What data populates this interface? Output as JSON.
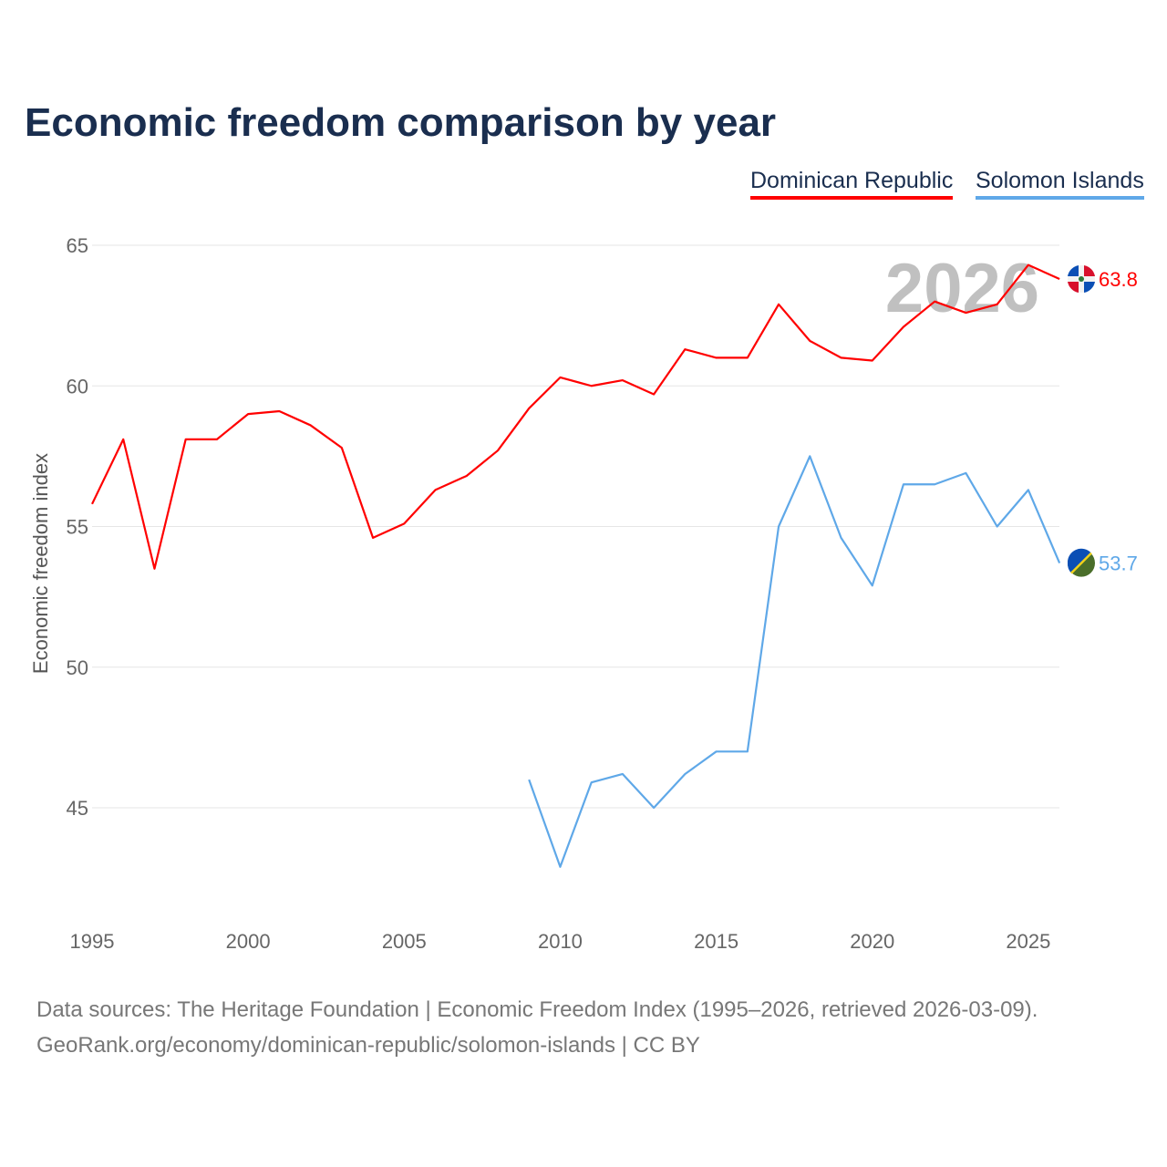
{
  "chart_data": {
    "type": "line",
    "title": "Economic freedom comparison by year",
    "xlabel": "",
    "ylabel": "Economic freedom index",
    "xlim": [
      1995,
      2026
    ],
    "ylim": [
      42,
      65
    ],
    "yticks": [
      45,
      50,
      55,
      60,
      65
    ],
    "xticks": [
      1995,
      2000,
      2005,
      2010,
      2015,
      2020,
      2025
    ],
    "grid": true,
    "legend_position": "top-right",
    "watermark_year": "2026",
    "series": [
      {
        "name": "Dominican Republic",
        "color": "#ff0000",
        "end_label": "63.8",
        "x": [
          1995,
          1996,
          1997,
          1998,
          1999,
          2000,
          2001,
          2002,
          2003,
          2004,
          2005,
          2006,
          2007,
          2008,
          2009,
          2010,
          2011,
          2012,
          2013,
          2014,
          2015,
          2016,
          2017,
          2018,
          2019,
          2020,
          2021,
          2022,
          2023,
          2024,
          2025,
          2026
        ],
        "values": [
          55.8,
          58.1,
          53.5,
          58.1,
          58.1,
          59.0,
          59.1,
          58.6,
          57.8,
          54.6,
          55.1,
          56.3,
          56.8,
          57.7,
          59.2,
          60.3,
          60.0,
          60.2,
          59.7,
          61.3,
          61.0,
          61.0,
          62.9,
          61.6,
          61.0,
          60.9,
          62.1,
          63.0,
          62.6,
          62.9,
          64.3,
          63.8
        ]
      },
      {
        "name": "Solomon Islands",
        "color": "#5fa8e8",
        "end_label": "53.7",
        "x": [
          2009,
          2010,
          2011,
          2012,
          2013,
          2014,
          2015,
          2016,
          2017,
          2018,
          2019,
          2020,
          2021,
          2022,
          2023,
          2024,
          2025,
          2026
        ],
        "values": [
          46.0,
          42.9,
          45.9,
          46.2,
          45.0,
          46.2,
          47.0,
          47.0,
          55.0,
          57.5,
          54.6,
          52.9,
          56.5,
          56.5,
          56.9,
          55.0,
          56.3,
          53.7
        ]
      }
    ]
  },
  "footer": {
    "line1": "Data sources: The Heritage Foundation | Economic Freedom Index (1995–2026, retrieved 2026-03-09).",
    "line2": "GeoRank.org/economy/dominican-republic/solomon-islands | CC BY"
  }
}
